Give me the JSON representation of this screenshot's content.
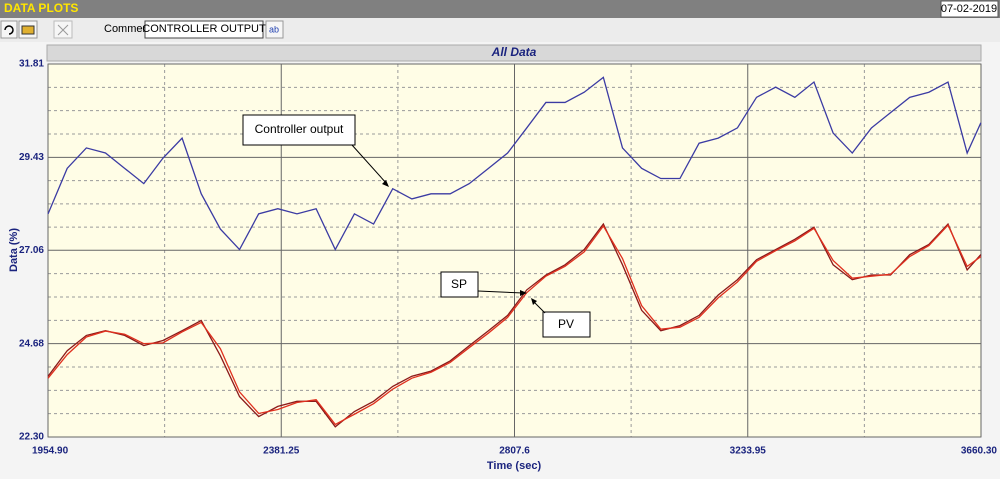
{
  "window": {
    "title": "DATA PLOTS",
    "date": "07-02-2019",
    "comment_label": "Comment",
    "comment_value": "CONTROLLER OUTPUT"
  },
  "chart_data": {
    "type": "line",
    "title": "All Data",
    "x_label": "Time (sec)",
    "y_label": "Data (%)",
    "x": [
      1955,
      1990,
      2025,
      2060,
      2095,
      2130,
      2165,
      2200,
      2235,
      2270,
      2305,
      2340,
      2375,
      2410,
      2445,
      2480,
      2515,
      2550,
      2585,
      2620,
      2655,
      2690,
      2725,
      2760,
      2795,
      2830,
      2865,
      2900,
      2935,
      2970,
      3005,
      3040,
      3075,
      3110,
      3145,
      3180,
      3215,
      3250,
      3285,
      3320,
      3355,
      3390,
      3425,
      3460,
      3495,
      3530,
      3565,
      3600,
      3635,
      3660
    ],
    "series": [
      {
        "name": "Controller output",
        "color": "#3b3ba3",
        "values": [
          27.99,
          29.15,
          29.67,
          29.54,
          29.15,
          28.76,
          29.41,
          29.92,
          28.5,
          27.6,
          27.08,
          27.99,
          28.12,
          27.99,
          28.12,
          27.08,
          27.99,
          27.73,
          28.63,
          28.37,
          28.5,
          28.5,
          28.76,
          29.15,
          29.54,
          30.18,
          30.83,
          30.83,
          31.09,
          31.47,
          29.67,
          29.15,
          28.89,
          28.89,
          29.79,
          29.92,
          30.18,
          30.96,
          31.22,
          30.96,
          31.35,
          30.05,
          29.54,
          30.18,
          30.57,
          30.96,
          31.09,
          31.35,
          29.54,
          30.31
        ]
      },
      {
        "name": "SP",
        "color": "#8b1a1a",
        "values": [
          23.85,
          24.5,
          24.89,
          25.01,
          24.89,
          24.63,
          24.76,
          25.01,
          25.27,
          24.37,
          23.33,
          22.82,
          23.08,
          23.21,
          23.21,
          22.56,
          22.95,
          23.21,
          23.59,
          23.85,
          23.98,
          24.24,
          24.63,
          25.01,
          25.4,
          26.05,
          26.43,
          26.69,
          27.08,
          27.73,
          26.69,
          25.53,
          25.01,
          25.14,
          25.4,
          25.92,
          26.31,
          26.82,
          27.08,
          27.34,
          27.65,
          26.69,
          26.31,
          26.43,
          26.43,
          26.95,
          27.21,
          27.73,
          26.56,
          26.95
        ]
      },
      {
        "name": "PV",
        "color": "#e0301e",
        "values": [
          23.8,
          24.4,
          24.85,
          25.0,
          24.92,
          24.68,
          24.7,
          24.98,
          25.22,
          24.55,
          23.45,
          22.9,
          23.0,
          23.18,
          23.25,
          22.62,
          22.88,
          23.15,
          23.52,
          23.8,
          23.95,
          24.2,
          24.58,
          24.95,
          25.35,
          25.98,
          26.4,
          26.65,
          27.02,
          27.68,
          26.85,
          25.65,
          25.05,
          25.1,
          25.35,
          25.85,
          26.25,
          26.78,
          27.05,
          27.3,
          27.62,
          26.8,
          26.35,
          26.4,
          26.45,
          26.9,
          27.18,
          27.7,
          26.65,
          26.9
        ]
      }
    ],
    "xlim": [
      1954.9,
      3660.3
    ],
    "xticks": [
      {
        "value": 1954.9,
        "label": "1954.90"
      },
      2381.25,
      2807.6,
      {
        "value": 3233.95,
        "label": "3233.95"
      },
      {
        "value": 3660.3,
        "label": "3660.30"
      }
    ],
    "ylim": [
      22.3,
      31.81
    ],
    "yticks": [
      {
        "value": 22.3,
        "label": "22.30"
      },
      24.68,
      27.06,
      29.43,
      31.81
    ],
    "grid": true
  }
}
